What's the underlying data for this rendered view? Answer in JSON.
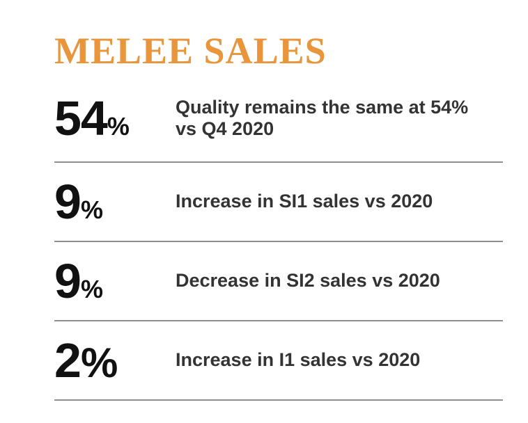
{
  "page": {
    "title": "MELEE SALES"
  },
  "colors": {
    "accent": "#E8953C",
    "number": "#111111",
    "text": "#333333",
    "divider": "#8F8F8F",
    "background": "#FFFFFF"
  },
  "stats": {
    "items": [
      {
        "value": "54",
        "percent_symbol": "%",
        "description": "Quality remains the same at 54% vs Q4 2020"
      },
      {
        "value": "9",
        "percent_symbol": "%",
        "description": "Increase in SI1 sales vs 2020"
      },
      {
        "value": "9",
        "percent_symbol": "%",
        "description": "Decrease in SI2 sales vs 2020"
      },
      {
        "value": "2",
        "percent_symbol": "%",
        "description": "Increase in I1 sales vs 2020"
      }
    ]
  }
}
